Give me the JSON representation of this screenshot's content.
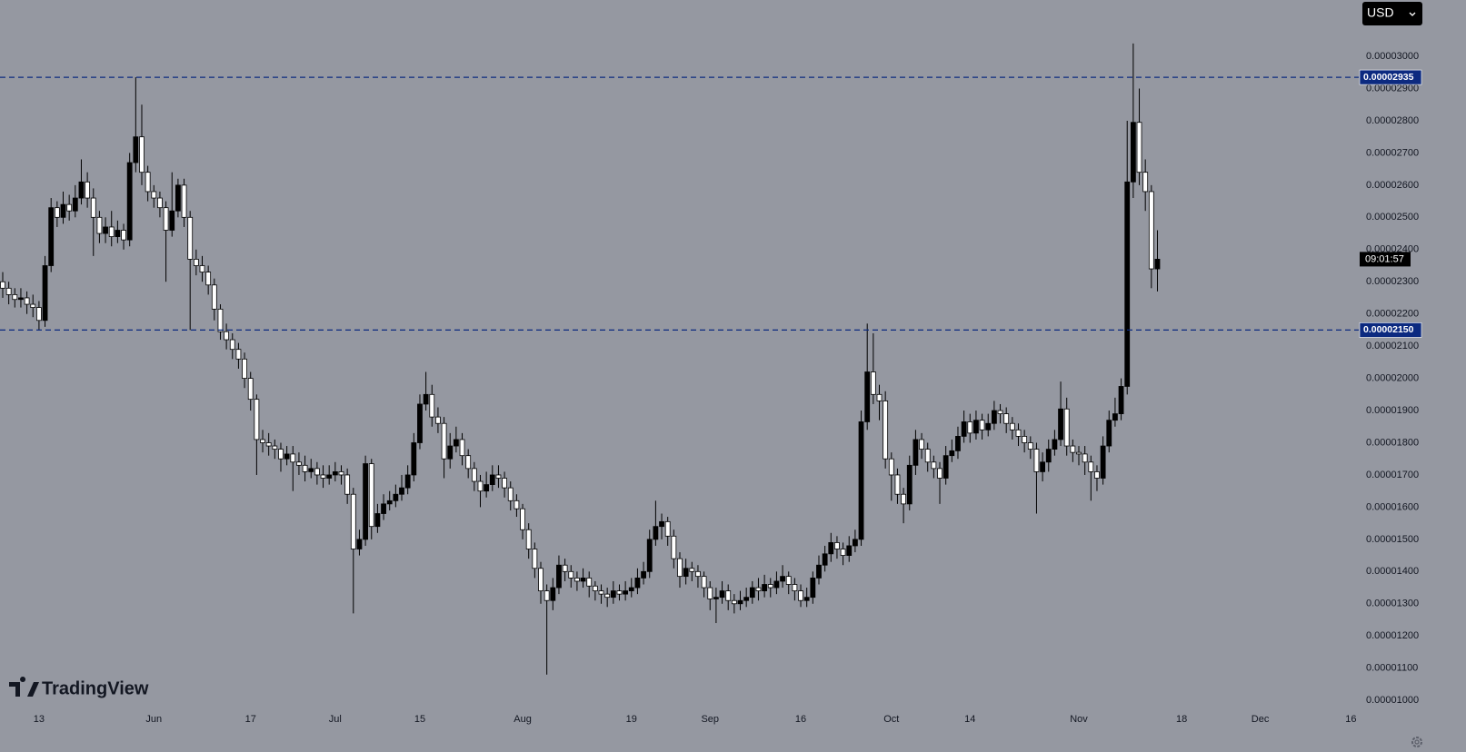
{
  "chart_data": {
    "type": "candlestick",
    "currency": "USD",
    "countdown": "09:01:57",
    "brand": "TradingView",
    "up_color": "#000000",
    "down_color": "#ffffff",
    "wick_color": "#000000",
    "ylim": [
      9.75e-06,
      3.175e-05
    ],
    "yticks": [
      {
        "value": 1e-05,
        "label": "0.00001000"
      },
      {
        "value": 1.1e-05,
        "label": "0.00001100"
      },
      {
        "value": 1.2e-05,
        "label": "0.00001200"
      },
      {
        "value": 1.3e-05,
        "label": "0.00001300"
      },
      {
        "value": 1.4e-05,
        "label": "0.00001400"
      },
      {
        "value": 1.5e-05,
        "label": "0.00001500"
      },
      {
        "value": 1.6e-05,
        "label": "0.00001600"
      },
      {
        "value": 1.7e-05,
        "label": "0.00001700"
      },
      {
        "value": 1.8e-05,
        "label": "0.00001800"
      },
      {
        "value": 1.9e-05,
        "label": "0.00001900"
      },
      {
        "value": 2e-05,
        "label": "0.00002000"
      },
      {
        "value": 2.1e-05,
        "label": "0.00002100"
      },
      {
        "value": 2.2e-05,
        "label": "0.00002200"
      },
      {
        "value": 2.3e-05,
        "label": "0.00002300"
      },
      {
        "value": 2.4e-05,
        "label": "0.00002400"
      },
      {
        "value": 2.5e-05,
        "label": "0.00002500"
      },
      {
        "value": 2.6e-05,
        "label": "0.00002600"
      },
      {
        "value": 2.7e-05,
        "label": "0.00002700"
      },
      {
        "value": 2.8e-05,
        "label": "0.00002800"
      },
      {
        "value": 2.9e-05,
        "label": "0.00002900"
      },
      {
        "value": 3e-05,
        "label": "0.00003000"
      }
    ],
    "hlines": {
      "color": "#0c2a80",
      "values": [
        2.935e-05,
        2.15e-05
      ],
      "value_labels": [
        "0.00002935",
        "0.00002150"
      ]
    },
    "categories": [
      null,
      null,
      null,
      null,
      null,
      null,
      "13",
      null,
      null,
      null,
      null,
      null,
      null,
      null,
      null,
      null,
      null,
      null,
      null,
      null,
      null,
      null,
      null,
      null,
      null,
      "Jun",
      null,
      null,
      null,
      null,
      null,
      null,
      null,
      null,
      null,
      null,
      null,
      null,
      null,
      null,
      null,
      "17",
      null,
      null,
      null,
      null,
      null,
      null,
      null,
      null,
      null,
      null,
      null,
      null,
      null,
      "Jul",
      null,
      null,
      null,
      null,
      null,
      null,
      null,
      null,
      null,
      null,
      null,
      null,
      null,
      "15",
      null,
      null,
      null,
      null,
      null,
      null,
      null,
      null,
      null,
      null,
      null,
      null,
      null,
      null,
      null,
      null,
      "Aug",
      null,
      null,
      null,
      null,
      null,
      null,
      null,
      null,
      null,
      null,
      null,
      null,
      null,
      null,
      null,
      null,
      null,
      "19",
      null,
      null,
      null,
      null,
      null,
      null,
      null,
      null,
      null,
      null,
      null,
      null,
      "Sep",
      null,
      null,
      null,
      null,
      null,
      null,
      null,
      null,
      null,
      null,
      null,
      null,
      null,
      null,
      "16",
      null,
      null,
      null,
      null,
      null,
      null,
      null,
      null,
      null,
      null,
      null,
      null,
      null,
      null,
      "Oct",
      null,
      null,
      null,
      null,
      null,
      null,
      null,
      null,
      null,
      null,
      null,
      null,
      "14",
      null,
      null,
      null,
      null,
      null,
      null,
      null,
      null,
      null,
      null,
      null,
      null,
      null,
      null,
      null,
      null,
      null,
      "Nov",
      null,
      null,
      null,
      null,
      null,
      null,
      null,
      null,
      null,
      null,
      null,
      null,
      null,
      null,
      null,
      null,
      "18",
      null,
      null,
      null,
      null,
      null,
      null,
      null,
      null,
      null,
      null,
      null,
      null,
      "Dec",
      null,
      null,
      null,
      null,
      null,
      null,
      null,
      null,
      null,
      null,
      null,
      null,
      null,
      null,
      "16"
    ],
    "open": [
      2.3e-05,
      2.28e-05,
      2.26e-05,
      2.245e-05,
      2.25e-05,
      2.23e-05,
      2.22e-05,
      2.18e-05,
      2.35e-05,
      2.53e-05,
      2.5e-05,
      2.54e-05,
      2.52e-05,
      2.56e-05,
      2.61e-05,
      2.56e-05,
      2.5e-05,
      2.45e-05,
      2.47e-05,
      2.44e-05,
      2.46e-05,
      2.43e-05,
      2.67e-05,
      2.75e-05,
      2.64e-05,
      2.58e-05,
      2.56e-05,
      2.53e-05,
      2.46e-05,
      2.52e-05,
      2.6e-05,
      2.5e-05,
      2.37e-05,
      2.35e-05,
      2.33e-05,
      2.29e-05,
      2.215e-05,
      2.145e-05,
      2.12e-05,
      2.09e-05,
      2.06e-05,
      2e-05,
      1.935e-05,
      1.81e-05,
      1.8e-05,
      1.79e-05,
      1.78e-05,
      1.75e-05,
      1.765e-05,
      1.74e-05,
      1.73e-05,
      1.71e-05,
      1.72e-05,
      1.7e-05,
      1.69e-05,
      1.7e-05,
      1.71e-05,
      1.7e-05,
      1.64e-05,
      1.47e-05,
      1.5e-05,
      1.735e-05,
      1.54e-05,
      1.58e-05,
      1.61e-05,
      1.62e-05,
      1.64e-05,
      1.66e-05,
      1.7e-05,
      1.8e-05,
      1.92e-05,
      1.95e-05,
      1.88e-05,
      1.86e-05,
      1.75e-05,
      1.79e-05,
      1.81e-05,
      1.76e-05,
      1.72e-05,
      1.68e-05,
      1.65e-05,
      1.67e-05,
      1.7e-05,
      1.69e-05,
      1.66e-05,
      1.62e-05,
      1.595e-05,
      1.53e-05,
      1.47e-05,
      1.41e-05,
      1.34e-05,
      1.31e-05,
      1.35e-05,
      1.42e-05,
      1.4e-05,
      1.38e-05,
      1.37e-05,
      1.38e-05,
      1.355e-05,
      1.34e-05,
      1.33e-05,
      1.32e-05,
      1.34e-05,
      1.33e-05,
      1.34e-05,
      1.35e-05,
      1.38e-05,
      1.4e-05,
      1.5e-05,
      1.54e-05,
      1.555e-05,
      1.51e-05,
      1.44e-05,
      1.385e-05,
      1.41e-05,
      1.4e-05,
      1.385e-05,
      1.35e-05,
      1.315e-05,
      1.32e-05,
      1.34e-05,
      1.31e-05,
      1.3e-05,
      1.31e-05,
      1.32e-05,
      1.35e-05,
      1.34e-05,
      1.36e-05,
      1.35e-05,
      1.37e-05,
      1.385e-05,
      1.36e-05,
      1.34e-05,
      1.31e-05,
      1.32e-05,
      1.38e-05,
      1.42e-05,
      1.455e-05,
      1.49e-05,
      1.47e-05,
      1.45e-05,
      1.48e-05,
      1.5e-05,
      1.865e-05,
      2.02e-05,
      1.95e-05,
      1.93e-05,
      1.75e-05,
      1.7e-05,
      1.64e-05,
      1.61e-05,
      1.73e-05,
      1.81e-05,
      1.78e-05,
      1.74e-05,
      1.72e-05,
      1.69e-05,
      1.76e-05,
      1.775e-05,
      1.82e-05,
      1.865e-05,
      1.83e-05,
      1.87e-05,
      1.84e-05,
      1.86e-05,
      1.9e-05,
      1.89e-05,
      1.86e-05,
      1.84e-05,
      1.82e-05,
      1.8e-05,
      1.78e-05,
      1.71e-05,
      1.74e-05,
      1.78e-05,
      1.81e-05,
      1.905e-05,
      1.79e-05,
      1.77e-05,
      1.765e-05,
      1.74e-05,
      1.71e-05,
      1.69e-05,
      1.79e-05,
      1.87e-05,
      1.89e-05,
      1.975e-05,
      2.61e-05,
      2.795e-05,
      2.64e-05,
      2.58e-05,
      2.34e-05,
      null,
      null,
      null,
      null,
      null,
      null,
      null,
      null,
      null,
      null,
      null,
      null,
      null,
      null,
      null,
      null,
      null,
      null,
      null,
      null,
      null,
      null,
      null,
      null,
      null,
      null,
      null,
      null,
      null,
      null,
      null,
      null
    ],
    "high": [
      2.33e-05,
      2.3e-05,
      2.28e-05,
      2.28e-05,
      2.27e-05,
      2.26e-05,
      2.24e-05,
      2.38e-05,
      2.56e-05,
      2.55e-05,
      2.58e-05,
      2.57e-05,
      2.6e-05,
      2.68e-05,
      2.64e-05,
      2.59e-05,
      2.52e-05,
      2.5e-05,
      2.52e-05,
      2.49e-05,
      2.48e-05,
      2.7e-05,
      2.935e-05,
      2.85e-05,
      2.66e-05,
      2.6e-05,
      2.58e-05,
      2.55e-05,
      2.64e-05,
      2.62e-05,
      2.62e-05,
      2.52e-05,
      2.4e-05,
      2.38e-05,
      2.35e-05,
      2.31e-05,
      2.23e-05,
      2.17e-05,
      2.14e-05,
      2.11e-05,
      2.08e-05,
      2.02e-05,
      1.95e-05,
      1.84e-05,
      1.83e-05,
      1.81e-05,
      1.8e-05,
      1.79e-05,
      1.79e-05,
      1.77e-05,
      1.76e-05,
      1.75e-05,
      1.74e-05,
      1.73e-05,
      1.73e-05,
      1.74e-05,
      1.73e-05,
      1.72e-05,
      1.66e-05,
      1.53e-05,
      1.76e-05,
      1.75e-05,
      1.61e-05,
      1.64e-05,
      1.65e-05,
      1.67e-05,
      1.7e-05,
      1.73e-05,
      1.83e-05,
      1.95e-05,
      2.02e-05,
      1.98e-05,
      1.91e-05,
      1.88e-05,
      1.83e-05,
      1.85e-05,
      1.83e-05,
      1.78e-05,
      1.74e-05,
      1.7e-05,
      1.71e-05,
      1.73e-05,
      1.73e-05,
      1.71e-05,
      1.68e-05,
      1.64e-05,
      1.61e-05,
      1.55e-05,
      1.49e-05,
      1.43e-05,
      1.36e-05,
      1.38e-05,
      1.45e-05,
      1.44e-05,
      1.42e-05,
      1.4e-05,
      1.41e-05,
      1.4e-05,
      1.37e-05,
      1.36e-05,
      1.35e-05,
      1.37e-05,
      1.36e-05,
      1.37e-05,
      1.38e-05,
      1.41e-05,
      1.43e-05,
      1.53e-05,
      1.62e-05,
      1.58e-05,
      1.57e-05,
      1.53e-05,
      1.46e-05,
      1.44e-05,
      1.43e-05,
      1.42e-05,
      1.4e-05,
      1.37e-05,
      1.35e-05,
      1.37e-05,
      1.36e-05,
      1.33e-05,
      1.34e-05,
      1.35e-05,
      1.37e-05,
      1.38e-05,
      1.39e-05,
      1.38e-05,
      1.4e-05,
      1.42e-05,
      1.4e-05,
      1.38e-05,
      1.36e-05,
      1.35e-05,
      1.4e-05,
      1.45e-05,
      1.48e-05,
      1.52e-05,
      1.51e-05,
      1.49e-05,
      1.51e-05,
      1.53e-05,
      1.9e-05,
      2.17e-05,
      2.14e-05,
      1.98e-05,
      1.96e-05,
      1.77e-05,
      1.72e-05,
      1.66e-05,
      1.76e-05,
      1.84e-05,
      1.83e-05,
      1.8e-05,
      1.76e-05,
      1.74e-05,
      1.79e-05,
      1.81e-05,
      1.85e-05,
      1.9e-05,
      1.89e-05,
      1.9e-05,
      1.89e-05,
      1.89e-05,
      1.93e-05,
      1.92e-05,
      1.91e-05,
      1.88e-05,
      1.86e-05,
      1.84e-05,
      1.82e-05,
      1.8e-05,
      1.77e-05,
      1.81e-05,
      1.84e-05,
      1.99e-05,
      1.94e-05,
      1.81e-05,
      1.79e-05,
      1.79e-05,
      1.76e-05,
      1.73e-05,
      1.82e-05,
      1.9e-05,
      1.94e-05,
      2e-05,
      2.8e-05,
      3.04e-05,
      2.9e-05,
      2.68e-05,
      2.6e-05,
      2.46e-05,
      null,
      null,
      null,
      null,
      null,
      null,
      null,
      null,
      null,
      null,
      null,
      null,
      null,
      null,
      null,
      null,
      null,
      null,
      null,
      null,
      null,
      null,
      null,
      null,
      null,
      null,
      null,
      null,
      null,
      null,
      null,
      null
    ],
    "low": [
      2.25e-05,
      2.23e-05,
      2.22e-05,
      2.22e-05,
      2.2e-05,
      2.19e-05,
      2.15e-05,
      2.16e-05,
      2.33e-05,
      2.47e-05,
      2.48e-05,
      2.49e-05,
      2.5e-05,
      2.54e-05,
      2.53e-05,
      2.38e-05,
      2.42e-05,
      2.42e-05,
      2.41e-05,
      2.42e-05,
      2.4e-05,
      2.41e-05,
      2.64e-05,
      2.6e-05,
      2.55e-05,
      2.53e-05,
      2.5e-05,
      2.3e-05,
      2.44e-05,
      2.5e-05,
      2.47e-05,
      2.15e-05,
      2.32e-05,
      2.3e-05,
      2.26e-05,
      2.18e-05,
      2.12e-05,
      2.09e-05,
      2.06e-05,
      2.03e-05,
      1.97e-05,
      1.9e-05,
      1.7e-05,
      1.77e-05,
      1.76e-05,
      1.75e-05,
      1.71e-05,
      1.73e-05,
      1.65e-05,
      1.7e-05,
      1.68e-05,
      1.69e-05,
      1.67e-05,
      1.66e-05,
      1.67e-05,
      1.68e-05,
      1.67e-05,
      1.61e-05,
      1.27e-05,
      1.45e-05,
      1.48e-05,
      1.5e-05,
      1.52e-05,
      1.56e-05,
      1.59e-05,
      1.6e-05,
      1.62e-05,
      1.64e-05,
      1.68e-05,
      1.78e-05,
      1.9e-05,
      1.85e-05,
      1.83e-05,
      1.69e-05,
      1.72e-05,
      1.77e-05,
      1.73e-05,
      1.69e-05,
      1.65e-05,
      1.6e-05,
      1.63e-05,
      1.65e-05,
      1.66e-05,
      1.63e-05,
      1.59e-05,
      1.57e-05,
      1.5e-05,
      1.44e-05,
      1.38e-05,
      1.3e-05,
      1.08e-05,
      1.28e-05,
      1.33e-05,
      1.37e-05,
      1.35e-05,
      1.34e-05,
      1.35e-05,
      1.32e-05,
      1.31e-05,
      1.3e-05,
      1.29e-05,
      1.3e-05,
      1.31e-05,
      1.31e-05,
      1.32e-05,
      1.33e-05,
      1.36e-05,
      1.38e-05,
      1.48e-05,
      1.5e-05,
      1.48e-05,
      1.41e-05,
      1.35e-05,
      1.36e-05,
      1.37e-05,
      1.35e-05,
      1.32e-05,
      1.28e-05,
      1.24e-05,
      1.3e-05,
      1.28e-05,
      1.27e-05,
      1.28e-05,
      1.29e-05,
      1.3e-05,
      1.31e-05,
      1.32e-05,
      1.32e-05,
      1.33e-05,
      1.35e-05,
      1.33e-05,
      1.31e-05,
      1.29e-05,
      1.29e-05,
      1.3e-05,
      1.36e-05,
      1.4e-05,
      1.43e-05,
      1.44e-05,
      1.42e-05,
      1.43e-05,
      1.46e-05,
      1.48e-05,
      1.84e-05,
      1.92e-05,
      1.87e-05,
      1.72e-05,
      1.62e-05,
      1.61e-05,
      1.55e-05,
      1.59e-05,
      1.7e-05,
      1.75e-05,
      1.71e-05,
      1.69e-05,
      1.61e-05,
      1.67e-05,
      1.74e-05,
      1.75e-05,
      1.8e-05,
      1.8e-05,
      1.81e-05,
      1.81e-05,
      1.82e-05,
      1.84e-05,
      1.86e-05,
      1.83e-05,
      1.81e-05,
      1.79e-05,
      1.77e-05,
      1.75e-05,
      1.58e-05,
      1.68e-05,
      1.71e-05,
      1.76e-05,
      1.79e-05,
      1.76e-05,
      1.74e-05,
      1.73e-05,
      1.7e-05,
      1.62e-05,
      1.65e-05,
      1.67e-05,
      1.77e-05,
      1.85e-05,
      1.87e-05,
      1.95e-05,
      2.56e-05,
      2.6e-05,
      2.52e-05,
      2.28e-05,
      2.27e-05,
      null,
      null,
      null,
      null,
      null,
      null,
      null,
      null,
      null,
      null,
      null,
      null,
      null,
      null,
      null,
      null,
      null,
      null,
      null,
      null,
      null,
      null,
      null,
      null,
      null,
      null,
      null,
      null,
      null,
      null,
      null,
      null
    ],
    "close": [
      2.28e-05,
      2.26e-05,
      2.245e-05,
      2.25e-05,
      2.23e-05,
      2.22e-05,
      2.18e-05,
      2.35e-05,
      2.53e-05,
      2.5e-05,
      2.54e-05,
      2.52e-05,
      2.56e-05,
      2.61e-05,
      2.56e-05,
      2.5e-05,
      2.45e-05,
      2.47e-05,
      2.44e-05,
      2.46e-05,
      2.43e-05,
      2.67e-05,
      2.75e-05,
      2.64e-05,
      2.58e-05,
      2.56e-05,
      2.53e-05,
      2.46e-05,
      2.52e-05,
      2.6e-05,
      2.5e-05,
      2.37e-05,
      2.35e-05,
      2.33e-05,
      2.29e-05,
      2.215e-05,
      2.145e-05,
      2.12e-05,
      2.09e-05,
      2.06e-05,
      2e-05,
      1.935e-05,
      1.81e-05,
      1.8e-05,
      1.79e-05,
      1.78e-05,
      1.75e-05,
      1.765e-05,
      1.74e-05,
      1.73e-05,
      1.71e-05,
      1.72e-05,
      1.7e-05,
      1.69e-05,
      1.7e-05,
      1.71e-05,
      1.7e-05,
      1.64e-05,
      1.47e-05,
      1.5e-05,
      1.735e-05,
      1.54e-05,
      1.58e-05,
      1.61e-05,
      1.62e-05,
      1.64e-05,
      1.66e-05,
      1.7e-05,
      1.8e-05,
      1.92e-05,
      1.95e-05,
      1.88e-05,
      1.86e-05,
      1.75e-05,
      1.79e-05,
      1.81e-05,
      1.76e-05,
      1.72e-05,
      1.68e-05,
      1.65e-05,
      1.67e-05,
      1.7e-05,
      1.69e-05,
      1.66e-05,
      1.62e-05,
      1.595e-05,
      1.53e-05,
      1.47e-05,
      1.41e-05,
      1.34e-05,
      1.31e-05,
      1.35e-05,
      1.42e-05,
      1.4e-05,
      1.38e-05,
      1.37e-05,
      1.38e-05,
      1.355e-05,
      1.34e-05,
      1.33e-05,
      1.32e-05,
      1.34e-05,
      1.33e-05,
      1.34e-05,
      1.35e-05,
      1.38e-05,
      1.4e-05,
      1.5e-05,
      1.54e-05,
      1.555e-05,
      1.51e-05,
      1.44e-05,
      1.385e-05,
      1.41e-05,
      1.4e-05,
      1.385e-05,
      1.35e-05,
      1.315e-05,
      1.32e-05,
      1.34e-05,
      1.31e-05,
      1.3e-05,
      1.31e-05,
      1.32e-05,
      1.35e-05,
      1.34e-05,
      1.36e-05,
      1.35e-05,
      1.37e-05,
      1.385e-05,
      1.36e-05,
      1.34e-05,
      1.31e-05,
      1.32e-05,
      1.38e-05,
      1.42e-05,
      1.455e-05,
      1.49e-05,
      1.47e-05,
      1.45e-05,
      1.48e-05,
      1.5e-05,
      1.865e-05,
      2.02e-05,
      1.95e-05,
      1.93e-05,
      1.75e-05,
      1.7e-05,
      1.64e-05,
      1.61e-05,
      1.73e-05,
      1.81e-05,
      1.78e-05,
      1.74e-05,
      1.72e-05,
      1.69e-05,
      1.76e-05,
      1.775e-05,
      1.82e-05,
      1.865e-05,
      1.83e-05,
      1.87e-05,
      1.84e-05,
      1.86e-05,
      1.9e-05,
      1.89e-05,
      1.86e-05,
      1.84e-05,
      1.82e-05,
      1.8e-05,
      1.78e-05,
      1.71e-05,
      1.74e-05,
      1.78e-05,
      1.81e-05,
      1.905e-05,
      1.79e-05,
      1.77e-05,
      1.765e-05,
      1.74e-05,
      1.71e-05,
      1.69e-05,
      1.79e-05,
      1.87e-05,
      1.89e-05,
      1.975e-05,
      2.61e-05,
      2.795e-05,
      2.64e-05,
      2.58e-05,
      2.34e-05,
      2.37e-05,
      null,
      null,
      null,
      null,
      null,
      null,
      null,
      null,
      null,
      null,
      null,
      null,
      null,
      null,
      null,
      null,
      null,
      null,
      null,
      null,
      null,
      null,
      null,
      null,
      null,
      null,
      null,
      null,
      null,
      null,
      null,
      null
    ]
  }
}
